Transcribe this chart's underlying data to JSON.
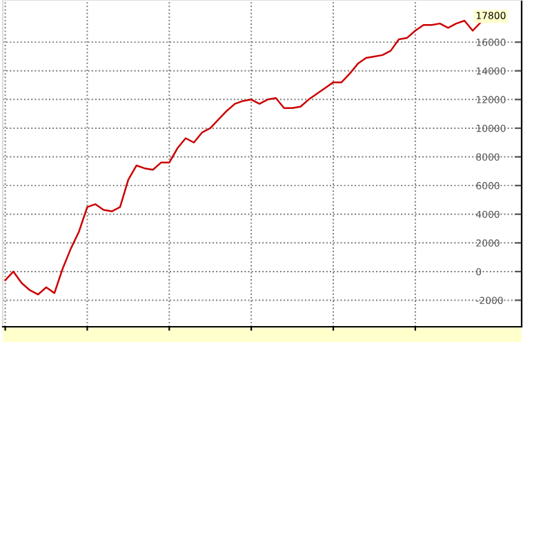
{
  "chart_data": {
    "type": "line",
    "categories": [
      null,
      null,
      null,
      null,
      null,
      null,
      null,
      null,
      null,
      null,
      null,
      null,
      null,
      null,
      null,
      null,
      null,
      null,
      null,
      null,
      null,
      null,
      null,
      null,
      null,
      null,
      null,
      null,
      null,
      null,
      null,
      null,
      null,
      null,
      null,
      null,
      null,
      null,
      null,
      null,
      null,
      null,
      null,
      null,
      null,
      null,
      null,
      null,
      null,
      null,
      null,
      null,
      null,
      null,
      null,
      null,
      null,
      null,
      null,
      null
    ],
    "series": [
      {
        "color": "#cc0000",
        "values": [
          -600,
          0,
          -800,
          -1300,
          -1600,
          -1100,
          -1500,
          200,
          1600,
          2800,
          4500,
          4700,
          4300,
          4200,
          4500,
          6400,
          7400,
          7200,
          7100,
          7600,
          7600,
          8600,
          9300,
          9000,
          9700,
          10000,
          10600,
          11200,
          11700,
          11900,
          12000,
          11700,
          12000,
          12100,
          11400,
          11400,
          11500,
          12000,
          12400,
          12800,
          13200,
          13200,
          13800,
          14500,
          14900,
          15000,
          15100,
          15400,
          16200,
          16300,
          16800,
          17200,
          17200,
          17300,
          17000,
          17300,
          17500,
          16800,
          17400,
          17800
        ]
      }
    ],
    "ylim": [
      -3850,
      18940
    ],
    "yticks": [
      -2000,
      0,
      2000,
      4000,
      6000,
      8000,
      10000,
      12000,
      14000,
      16000
    ],
    "annotations": [
      {
        "text": "17800",
        "y": 17800
      }
    ],
    "grid": true,
    "line_style": "solid",
    "marker": "none",
    "legend": false,
    "tick_labels": "y"
  }
}
